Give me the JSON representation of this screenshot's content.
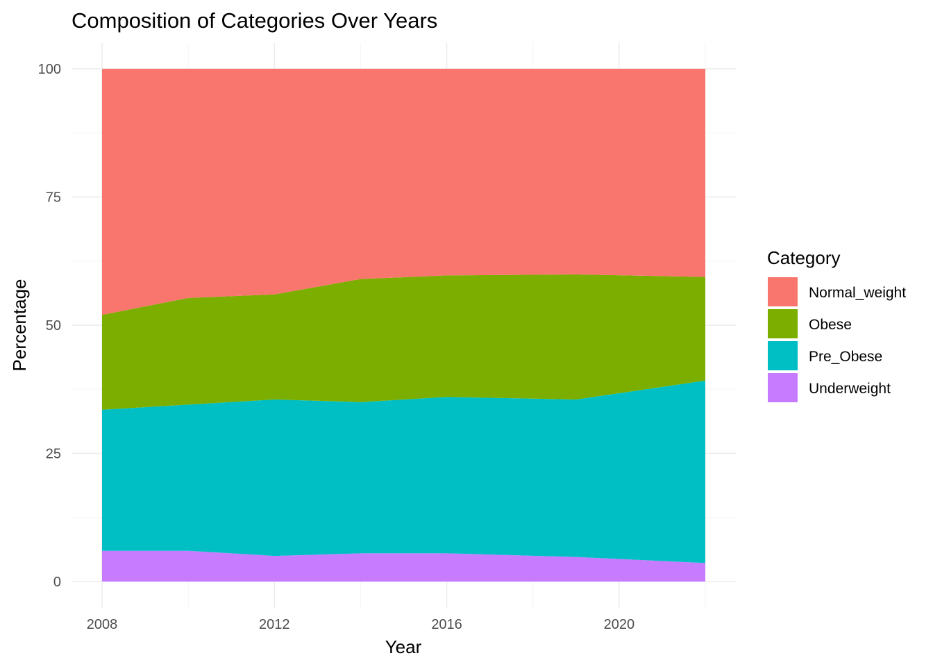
{
  "chart_data": {
    "type": "area",
    "stacked": true,
    "title": "Composition of Categories Over Years",
    "xlabel": "Year",
    "ylabel": "Percentage",
    "xlim": [
      2008,
      2022
    ],
    "ylim": [
      0,
      100
    ],
    "x_ticks": [
      2008,
      2012,
      2016,
      2020
    ],
    "y_ticks": [
      0,
      25,
      50,
      75,
      100
    ],
    "grid": true,
    "legend_title": "Category",
    "legend_position": "right",
    "x": [
      2008,
      2010,
      2012,
      2014,
      2016,
      2019,
      2022
    ],
    "series": [
      {
        "name": "Underweight",
        "color": "#C77CFF",
        "values": [
          6.0,
          6.0,
          5.0,
          5.5,
          5.5,
          4.8,
          3.6
        ]
      },
      {
        "name": "Pre_Obese",
        "color": "#00BFC4",
        "values": [
          27.5,
          28.5,
          30.5,
          29.5,
          30.5,
          30.7,
          35.6
        ]
      },
      {
        "name": "Obese",
        "color": "#7CAE00",
        "values": [
          18.5,
          20.8,
          20.5,
          24.0,
          23.7,
          24.4,
          20.2
        ]
      },
      {
        "name": "Normal_weight",
        "color": "#F8766D",
        "values": [
          48.0,
          44.7,
          44.0,
          41.0,
          40.3,
          40.1,
          40.6
        ]
      }
    ],
    "legend_order": [
      "Normal_weight",
      "Obese",
      "Pre_Obese",
      "Underweight"
    ]
  }
}
